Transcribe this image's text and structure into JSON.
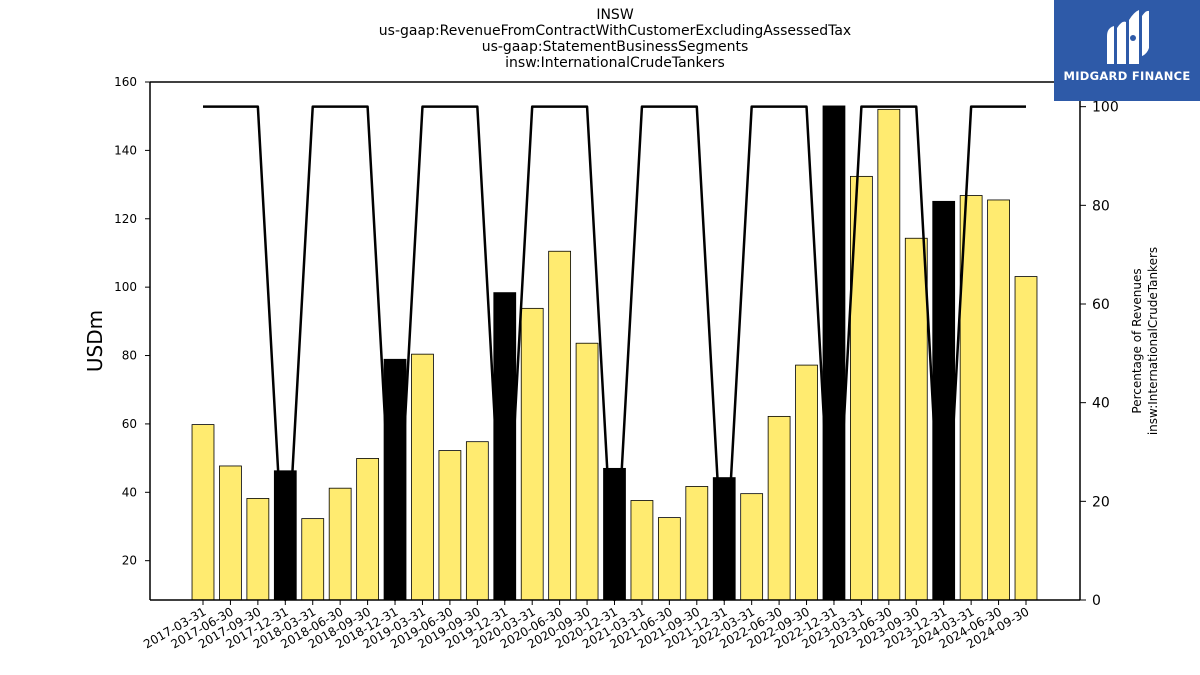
{
  "title_lines": [
    "INSW",
    "us-gaap:RevenueFromContractWithCustomerExcludingAssessedTax",
    "us-gaap:StatementBusinessSegments",
    "insw:InternationalCrudeTankers"
  ],
  "logo": {
    "text": "MIDGARD FINANCE",
    "color": "#2e5aa8"
  },
  "chart_data": {
    "type": "bar",
    "categories": [
      "2017-03-31",
      "2017-06-30",
      "2017-09-30",
      "2017-12-31",
      "2018-03-31",
      "2018-06-30",
      "2018-09-30",
      "2018-12-31",
      "2019-03-31",
      "2019-06-30",
      "2019-09-30",
      "2019-12-31",
      "2020-03-31",
      "2020-06-30",
      "2020-09-30",
      "2020-12-31",
      "2021-03-31",
      "2021-06-30",
      "2021-09-30",
      "2021-12-31",
      "2022-03-31",
      "2022-06-30",
      "2022-09-30",
      "2022-12-31",
      "2023-03-31",
      "2023-06-30",
      "2023-09-30",
      "2023-12-31",
      "2024-03-31",
      "2024-06-30",
      "2024-09-30"
    ],
    "values": [
      59.8,
      47.7,
      38.2,
      46.3,
      32.3,
      41.2,
      49.9,
      78.9,
      80.4,
      52.2,
      54.8,
      98.4,
      93.8,
      110.5,
      83.6,
      47.0,
      37.6,
      32.6,
      41.7,
      44.3,
      39.6,
      62.2,
      77.2,
      153.0,
      132.4,
      152.0,
      114.3,
      125.1,
      126.8,
      125.5,
      103.1
    ],
    "highlight": [
      false,
      false,
      false,
      true,
      false,
      false,
      false,
      true,
      false,
      false,
      false,
      true,
      false,
      false,
      false,
      true,
      false,
      false,
      false,
      true,
      false,
      false,
      false,
      true,
      false,
      false,
      false,
      true,
      false,
      false,
      false
    ],
    "line_series": {
      "values": [
        100,
        100,
        100,
        0,
        100,
        100,
        100,
        0,
        100,
        100,
        100,
        0,
        100,
        100,
        100,
        0,
        100,
        100,
        100,
        0,
        100,
        100,
        100,
        0,
        100,
        100,
        100,
        0,
        100,
        100,
        100
      ],
      "color": "#000000"
    },
    "ylabel": "USDm",
    "ylabel_right": [
      "Percentage of Revenues",
      "insw:InternationalCrudeTankers"
    ],
    "ylim": [
      8.5,
      160
    ],
    "yticks": [
      20,
      40,
      60,
      80,
      100,
      120,
      140,
      160
    ],
    "ylim_right": [
      0,
      105
    ],
    "yticks_right": [
      0,
      20,
      40,
      60,
      80,
      100
    ],
    "bar_color": "#ffeb70",
    "highlight_color": "#000000",
    "grid": false
  }
}
